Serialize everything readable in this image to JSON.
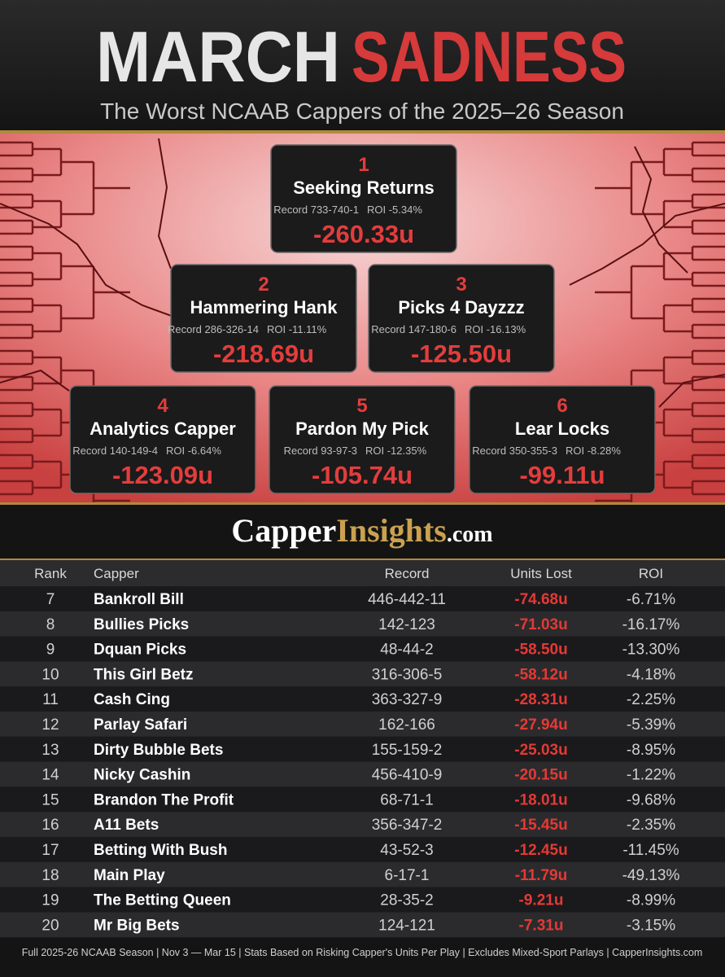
{
  "header": {
    "title_part1": "MARCH",
    "title_part2": "SADNESS",
    "subtitle": "The Worst NCAAB Cappers of the 2025–26 Season"
  },
  "top_cards": [
    {
      "rank": "1",
      "name": "Seeking Returns",
      "record": "Record 733-740-1",
      "roi": "ROI -5.34%",
      "units": "-260.33u"
    },
    {
      "rank": "2",
      "name": "Hammering Hank",
      "record": "Record 286-326-14",
      "roi": "ROI -11.11%",
      "units": "-218.69u"
    },
    {
      "rank": "3",
      "name": "Picks 4 Dayzzz",
      "record": "Record 147-180-6",
      "roi": "ROI -16.13%",
      "units": "-125.50u"
    },
    {
      "rank": "4",
      "name": "Analytics Capper",
      "record": "Record 140-149-4",
      "roi": "ROI -6.64%",
      "units": "-123.09u"
    },
    {
      "rank": "5",
      "name": "Pardon My Pick",
      "record": "Record 93-97-3",
      "roi": "ROI -12.35%",
      "units": "-105.74u"
    },
    {
      "rank": "6",
      "name": "Lear Locks",
      "record": "Record 350-355-3",
      "roi": "ROI -8.28%",
      "units": "-99.11u"
    }
  ],
  "brand": {
    "part1": "Capper",
    "part2": "Insights",
    "part3": ".com"
  },
  "table": {
    "headers": [
      "Rank",
      "Capper",
      "Record",
      "Units Lost",
      "ROI"
    ],
    "rows": [
      [
        "7",
        "Bankroll Bill",
        "446-442-11",
        "-74.68u",
        "-6.71%"
      ],
      [
        "8",
        "Bullies Picks",
        "142-123",
        "-71.03u",
        "-16.17%"
      ],
      [
        "9",
        "Dquan Picks",
        "48-44-2",
        "-58.50u",
        "-13.30%"
      ],
      [
        "10",
        "This Girl Betz",
        "316-306-5",
        "-58.12u",
        "-4.18%"
      ],
      [
        "11",
        "Cash Cing",
        "363-327-9",
        "-28.31u",
        "-2.25%"
      ],
      [
        "12",
        "Parlay Safari",
        "162-166",
        "-27.94u",
        "-5.39%"
      ],
      [
        "13",
        "Dirty Bubble Bets",
        "155-159-2",
        "-25.03u",
        "-8.95%"
      ],
      [
        "14",
        "Nicky Cashin",
        "456-410-9",
        "-20.15u",
        "-1.22%"
      ],
      [
        "15",
        "Brandon The Profit",
        "68-71-1",
        "-18.01u",
        "-9.68%"
      ],
      [
        "16",
        "A11 Bets",
        "356-347-2",
        "-15.45u",
        "-2.35%"
      ],
      [
        "17",
        "Betting With Bush",
        "43-52-3",
        "-12.45u",
        "-11.45%"
      ],
      [
        "18",
        "Main Play",
        "6-17-1",
        "-11.79u",
        "-49.13%"
      ],
      [
        "19",
        "The Betting Queen",
        "28-35-2",
        "-9.21u",
        "-8.99%"
      ],
      [
        "20",
        "Mr Big Bets",
        "124-121",
        "-7.31u",
        "-3.15%"
      ]
    ]
  },
  "footer": "Full 2025-26 NCAAB Season | Nov 3 — Mar 15 | Stats Based on Risking Capper's Units Per Play | Excludes Mixed-Sport Parlays | CapperInsights.com"
}
